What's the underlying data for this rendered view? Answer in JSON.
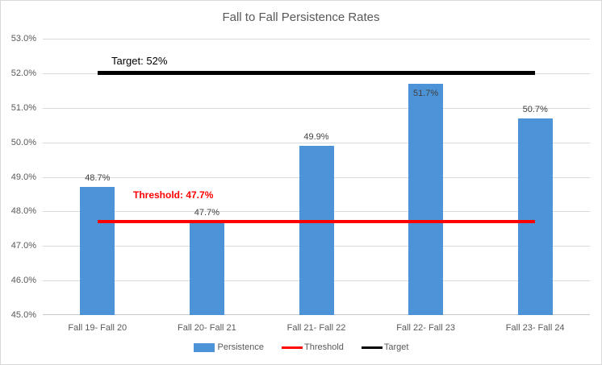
{
  "window": {
    "background": "#FFFFFF",
    "border_color": "#D9D9D9"
  },
  "chart_data": {
    "type": "bar",
    "title": "Fall to Fall Persistence Rates",
    "categories": [
      "Fall 19- Fall 20",
      "Fall 20- Fall 21",
      "Fall 21- Fall 22",
      "Fall 22- Fall 23",
      "Fall 23- Fall 24"
    ],
    "series": [
      {
        "name": "Persistence",
        "type": "bar",
        "color": "#4D93D8",
        "values": [
          48.7,
          47.7,
          49.9,
          51.7,
          50.7
        ],
        "data_labels": [
          "48.7%",
          "47.7%",
          "49.9%",
          "51.7%",
          "50.7%"
        ],
        "label_inside": [
          false,
          false,
          false,
          true,
          false
        ]
      }
    ],
    "reference_lines": [
      {
        "name": "Threshold",
        "value": 47.7,
        "color": "#FF0000",
        "label": "Threshold: 47.7%",
        "thickness_px": 4
      },
      {
        "name": "Target",
        "value": 52.0,
        "color": "#000000",
        "label": "Target: 52%",
        "thickness_px": 5
      }
    ],
    "xlabel": "",
    "ylabel": "",
    "ylim": [
      45,
      53
    ],
    "ytick_step": 1,
    "ytick_labels": [
      "45.0%",
      "46.0%",
      "47.0%",
      "48.0%",
      "49.0%",
      "50.0%",
      "51.0%",
      "52.0%",
      "53.0%"
    ],
    "grid": true,
    "gridline_color": "#D9D9D9",
    "axis_line_color": "#C8C8C8",
    "tick_text_color": "#595959",
    "data_label_color": "#404040",
    "legend": {
      "position": "bottom",
      "entries": [
        {
          "label": "Persistence",
          "swatch": "bar",
          "color": "#4D93D8"
        },
        {
          "label": "Threshold",
          "swatch": "line",
          "color": "#FF0000"
        },
        {
          "label": "Target",
          "swatch": "line",
          "color": "#000000"
        }
      ]
    }
  }
}
